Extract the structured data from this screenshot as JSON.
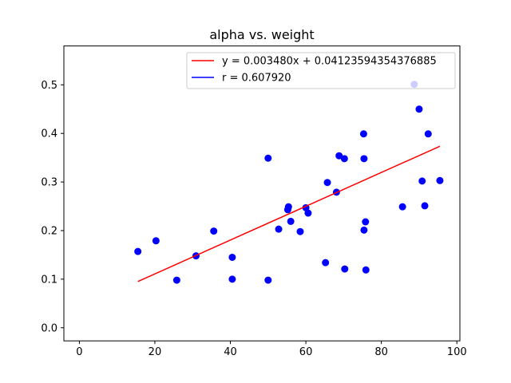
{
  "chart_data": {
    "type": "scatter",
    "title": "alpha vs. weight",
    "xlabel": "",
    "ylabel": "",
    "xlim": [
      -4.1,
      100.8
    ],
    "ylim": [
      -0.027,
      0.58
    ],
    "x_ticks": [
      0,
      20,
      40,
      60,
      80,
      100
    ],
    "y_ticks": [
      0.0,
      0.1,
      0.2,
      0.3,
      0.4,
      0.5
    ],
    "y_tick_labels": [
      "0.0",
      "0.1",
      "0.2",
      "0.3",
      "0.4",
      "0.5"
    ],
    "grid": false,
    "legend_position": "top-right",
    "colors": {
      "points": "#0000ff",
      "fit": "#ff0000",
      "r": "#0000ff"
    },
    "series": [
      {
        "name": "",
        "points": [
          {
            "x": 15.5,
            "y": 0.157
          },
          {
            "x": 20.3,
            "y": 0.179
          },
          {
            "x": 25.8,
            "y": 0.098
          },
          {
            "x": 30.9,
            "y": 0.148
          },
          {
            "x": 35.6,
            "y": 0.199
          },
          {
            "x": 40.5,
            "y": 0.145
          },
          {
            "x": 40.5,
            "y": 0.1
          },
          {
            "x": 50.0,
            "y": 0.349
          },
          {
            "x": 50.0,
            "y": 0.098
          },
          {
            "x": 52.8,
            "y": 0.203
          },
          {
            "x": 55.2,
            "y": 0.243
          },
          {
            "x": 55.4,
            "y": 0.249
          },
          {
            "x": 56.0,
            "y": 0.219
          },
          {
            "x": 58.5,
            "y": 0.198
          },
          {
            "x": 60.0,
            "y": 0.247
          },
          {
            "x": 60.6,
            "y": 0.236
          },
          {
            "x": 65.2,
            "y": 0.134
          },
          {
            "x": 65.7,
            "y": 0.299
          },
          {
            "x": 68.1,
            "y": 0.279
          },
          {
            "x": 68.8,
            "y": 0.354
          },
          {
            "x": 70.2,
            "y": 0.348
          },
          {
            "x": 70.3,
            "y": 0.121
          },
          {
            "x": 75.3,
            "y": 0.399
          },
          {
            "x": 75.4,
            "y": 0.348
          },
          {
            "x": 75.4,
            "y": 0.201
          },
          {
            "x": 75.8,
            "y": 0.218
          },
          {
            "x": 75.9,
            "y": 0.119
          },
          {
            "x": 85.6,
            "y": 0.249
          },
          {
            "x": 88.7,
            "y": 0.501
          },
          {
            "x": 90.0,
            "y": 0.45
          },
          {
            "x": 90.8,
            "y": 0.302
          },
          {
            "x": 91.5,
            "y": 0.251
          },
          {
            "x": 92.4,
            "y": 0.399
          },
          {
            "x": 95.5,
            "y": 0.303
          }
        ]
      }
    ],
    "fit_line": {
      "label": "y = 0.003480x + 0.04123594354376885",
      "slope": 0.00348,
      "intercept": 0.04123594354376885,
      "x_range": [
        15.5,
        95.5
      ]
    },
    "legend": [
      {
        "label": "y = 0.003480x + 0.04123594354376885",
        "color": "#ff0000"
      },
      {
        "label": "r = 0.607920",
        "color": "#0000ff"
      }
    ]
  }
}
